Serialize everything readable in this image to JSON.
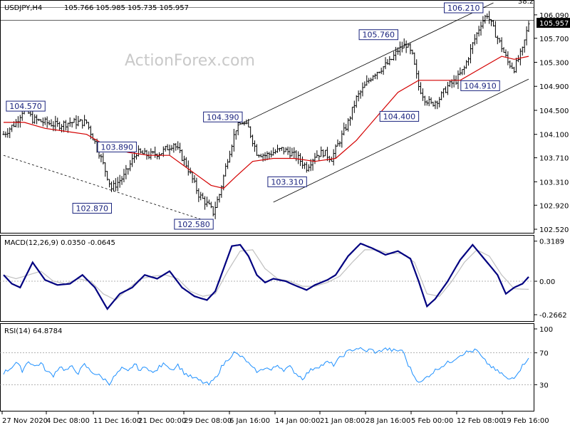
{
  "chart_data": [
    {
      "type": "candlestick",
      "title": "USDJPY,H4",
      "ohlc_header": "105.766 105.985 105.735 105.957",
      "watermark": "ActionForex.com",
      "ylim": [
        102.52,
        106.29
      ],
      "yticks": [
        "106.090",
        "105.700",
        "105.300",
        "104.900",
        "104.500",
        "104.100",
        "103.710",
        "103.310",
        "102.920",
        "102.520"
      ],
      "current_price": "105.957",
      "fib_label": "38.2",
      "x_labels": [
        "27 Nov 2020",
        "4 Dec 08:00",
        "11 Dec 16:00",
        "21 Dec 00:00",
        "29 Dec 08:00",
        "6 Jan 16:00",
        "14 Jan 00:00",
        "21 Jan 08:00",
        "28 Jan 16:00",
        "5 Feb 00:00",
        "12 Feb 08:00",
        "19 Feb 16:00"
      ],
      "annotations": [
        {
          "text": "104.570",
          "bar": 20,
          "price": 104.57
        },
        {
          "text": "102.870",
          "bar": 52,
          "price": 102.87
        },
        {
          "text": "103.890",
          "bar": 64,
          "price": 103.89
        },
        {
          "text": "102.580",
          "bar": 101,
          "price": 102.58
        },
        {
          "text": "104.390",
          "bar": 115,
          "price": 104.39
        },
        {
          "text": "103.310",
          "bar": 146,
          "price": 103.31
        },
        {
          "text": "105.760",
          "bar": 190,
          "price": 105.76
        },
        {
          "text": "104.400",
          "bar": 200,
          "price": 104.4
        },
        {
          "text": "106.210",
          "bar": 231,
          "price": 106.21
        },
        {
          "text": "104.910",
          "bar": 239,
          "price": 104.91
        }
      ],
      "close_anchors": [
        [
          0,
          104.1
        ],
        [
          6,
          104.3
        ],
        [
          10,
          104.55
        ],
        [
          14,
          104.35
        ],
        [
          20,
          104.3
        ],
        [
          26,
          104.25
        ],
        [
          32,
          104.3
        ],
        [
          40,
          104.3
        ],
        [
          46,
          103.8
        ],
        [
          52,
          103.2
        ],
        [
          58,
          103.4
        ],
        [
          64,
          103.8
        ],
        [
          70,
          103.75
        ],
        [
          76,
          103.8
        ],
        [
          82,
          103.95
        ],
        [
          88,
          103.6
        ],
        [
          94,
          103.1
        ],
        [
          99,
          102.9
        ],
        [
          101,
          102.8
        ],
        [
          104,
          103.1
        ],
        [
          108,
          103.7
        ],
        [
          112,
          104.2
        ],
        [
          115,
          104.3
        ],
        [
          118,
          104.2
        ],
        [
          122,
          103.8
        ],
        [
          126,
          103.75
        ],
        [
          130,
          103.8
        ],
        [
          134,
          103.85
        ],
        [
          138,
          103.8
        ],
        [
          142,
          103.7
        ],
        [
          146,
          103.55
        ],
        [
          150,
          103.75
        ],
        [
          154,
          103.8
        ],
        [
          158,
          103.7
        ],
        [
          162,
          104.0
        ],
        [
          166,
          104.3
        ],
        [
          170,
          104.7
        ],
        [
          174,
          104.9
        ],
        [
          178,
          105.1
        ],
        [
          182,
          105.2
        ],
        [
          186,
          105.3
        ],
        [
          190,
          105.5
        ],
        [
          194,
          105.6
        ],
        [
          197,
          105.4
        ],
        [
          200,
          104.9
        ],
        [
          203,
          104.7
        ],
        [
          206,
          104.6
        ],
        [
          210,
          104.7
        ],
        [
          214,
          104.9
        ],
        [
          218,
          105.0
        ],
        [
          222,
          105.2
        ],
        [
          226,
          105.6
        ],
        [
          230,
          105.95
        ],
        [
          233,
          106.1
        ],
        [
          236,
          105.85
        ],
        [
          240,
          105.55
        ],
        [
          243,
          105.3
        ],
        [
          246,
          105.2
        ],
        [
          250,
          105.5
        ],
        [
          253,
          105.957
        ]
      ],
      "moving_average": [
        [
          0,
          104.3
        ],
        [
          10,
          104.3
        ],
        [
          20,
          104.2
        ],
        [
          30,
          104.15
        ],
        [
          40,
          104.1
        ],
        [
          50,
          103.9
        ],
        [
          60,
          103.8
        ],
        [
          70,
          103.75
        ],
        [
          80,
          103.75
        ],
        [
          90,
          103.5
        ],
        [
          100,
          103.25
        ],
        [
          106,
          103.2
        ],
        [
          112,
          103.4
        ],
        [
          120,
          103.65
        ],
        [
          130,
          103.7
        ],
        [
          140,
          103.7
        ],
        [
          150,
          103.65
        ],
        [
          160,
          103.7
        ],
        [
          170,
          104.0
        ],
        [
          180,
          104.4
        ],
        [
          190,
          104.8
        ],
        [
          200,
          105.0
        ],
        [
          210,
          105.0
        ],
        [
          220,
          105.0
        ],
        [
          230,
          105.2
        ],
        [
          240,
          105.4
        ],
        [
          246,
          105.35
        ],
        [
          253,
          105.4
        ]
      ],
      "trendlines": [
        {
          "name": "support_dashed",
          "points": [
            [
              0,
              103.75
            ],
            [
              101,
              102.62
            ]
          ]
        },
        {
          "name": "channel_top",
          "points": [
            [
              113,
              104.25
            ],
            [
              236,
              106.29
            ]
          ]
        },
        {
          "name": "channel_bottom",
          "points": [
            [
              130,
              102.97
            ],
            [
              253,
              105.02
            ]
          ]
        }
      ],
      "levels": [
        106.21,
        106.0
      ]
    },
    {
      "type": "line",
      "title": "MACD(12,26,9) 0.0350 -0.0645",
      "ylim": [
        -0.3,
        0.34
      ],
      "yticks": [
        "0.3189",
        "0.00",
        "-0.2662"
      ],
      "series": [
        {
          "role": "macd",
          "color": "#000080",
          "values": [
            [
              0,
              0.05
            ],
            [
              4,
              -0.02
            ],
            [
              8,
              -0.05
            ],
            [
              14,
              0.15
            ],
            [
              20,
              0.01
            ],
            [
              26,
              -0.03
            ],
            [
              32,
              -0.02
            ],
            [
              38,
              0.05
            ],
            [
              44,
              -0.05
            ],
            [
              50,
              -0.22
            ],
            [
              56,
              -0.1
            ],
            [
              62,
              -0.05
            ],
            [
              68,
              0.05
            ],
            [
              74,
              0.02
            ],
            [
              80,
              0.08
            ],
            [
              86,
              -0.05
            ],
            [
              92,
              -0.12
            ],
            [
              98,
              -0.15
            ],
            [
              102,
              -0.08
            ],
            [
              106,
              0.1
            ],
            [
              110,
              0.28
            ],
            [
              114,
              0.29
            ],
            [
              118,
              0.2
            ],
            [
              122,
              0.05
            ],
            [
              126,
              -0.01
            ],
            [
              130,
              0.02
            ],
            [
              136,
              0.0
            ],
            [
              140,
              -0.03
            ],
            [
              146,
              -0.07
            ],
            [
              150,
              -0.03
            ],
            [
              156,
              0.01
            ],
            [
              160,
              0.05
            ],
            [
              166,
              0.2
            ],
            [
              172,
              0.3
            ],
            [
              178,
              0.26
            ],
            [
              184,
              0.21
            ],
            [
              190,
              0.24
            ],
            [
              196,
              0.18
            ],
            [
              200,
              0.0
            ],
            [
              204,
              -0.2
            ],
            [
              208,
              -0.14
            ],
            [
              214,
              0.0
            ],
            [
              220,
              0.17
            ],
            [
              226,
              0.29
            ],
            [
              232,
              0.17
            ],
            [
              238,
              0.05
            ],
            [
              242,
              -0.1
            ],
            [
              246,
              -0.05
            ],
            [
              250,
              -0.02
            ],
            [
              253,
              0.035
            ]
          ]
        },
        {
          "role": "signal",
          "color": "#c0c0c0",
          "values": [
            [
              0,
              0.05
            ],
            [
              6,
              0.02
            ],
            [
              12,
              0.05
            ],
            [
              18,
              0.08
            ],
            [
              24,
              0.0
            ],
            [
              30,
              -0.02
            ],
            [
              36,
              0.02
            ],
            [
              42,
              0.0
            ],
            [
              48,
              -0.1
            ],
            [
              54,
              -0.15
            ],
            [
              60,
              -0.06
            ],
            [
              66,
              0.02
            ],
            [
              72,
              0.04
            ],
            [
              78,
              0.05
            ],
            [
              84,
              0.02
            ],
            [
              90,
              -0.08
            ],
            [
              96,
              -0.12
            ],
            [
              102,
              -0.1
            ],
            [
              108,
              0.08
            ],
            [
              114,
              0.24
            ],
            [
              120,
              0.25
            ],
            [
              126,
              0.1
            ],
            [
              132,
              0.02
            ],
            [
              138,
              0.0
            ],
            [
              144,
              -0.04
            ],
            [
              150,
              -0.04
            ],
            [
              156,
              -0.01
            ],
            [
              162,
              0.04
            ],
            [
              168,
              0.15
            ],
            [
              174,
              0.25
            ],
            [
              180,
              0.25
            ],
            [
              186,
              0.22
            ],
            [
              192,
              0.22
            ],
            [
              198,
              0.15
            ],
            [
              204,
              -0.1
            ],
            [
              210,
              -0.12
            ],
            [
              216,
              0.0
            ],
            [
              222,
              0.15
            ],
            [
              228,
              0.25
            ],
            [
              234,
              0.2
            ],
            [
              240,
              0.05
            ],
            [
              246,
              -0.06
            ],
            [
              253,
              -0.0645
            ]
          ]
        }
      ],
      "zero_line": 0.0
    },
    {
      "type": "line",
      "title": "RSI(14) 64.8784",
      "ylim": [
        0,
        100
      ],
      "yticks": [
        "100",
        "70",
        "30"
      ],
      "levels": [
        70,
        30
      ],
      "series": [
        {
          "role": "rsi",
          "color": "#1e90ff",
          "values": [
            [
              0,
              45
            ],
            [
              3,
              50
            ],
            [
              6,
              58
            ],
            [
              9,
              48
            ],
            [
              12,
              60
            ],
            [
              15,
              53
            ],
            [
              18,
              57
            ],
            [
              21,
              46
            ],
            [
              24,
              42
            ],
            [
              27,
              53
            ],
            [
              30,
              48
            ],
            [
              33,
              52
            ],
            [
              36,
              45
            ],
            [
              39,
              55
            ],
            [
              42,
              47
            ],
            [
              45,
              43
            ],
            [
              48,
              38
            ],
            [
              51,
              32
            ],
            [
              54,
              42
            ],
            [
              57,
              50
            ],
            [
              60,
              46
            ],
            [
              63,
              56
            ],
            [
              66,
              48
            ],
            [
              69,
              53
            ],
            [
              72,
              44
            ],
            [
              75,
              52
            ],
            [
              78,
              57
            ],
            [
              81,
              49
            ],
            [
              84,
              55
            ],
            [
              87,
              45
            ],
            [
              90,
              40
            ],
            [
              93,
              37
            ],
            [
              96,
              33
            ],
            [
              99,
              30
            ],
            [
              102,
              38
            ],
            [
              105,
              52
            ],
            [
              108,
              62
            ],
            [
              111,
              70
            ],
            [
              114,
              66
            ],
            [
              117,
              60
            ],
            [
              120,
              50
            ],
            [
              123,
              46
            ],
            [
              126,
              52
            ],
            [
              129,
              48
            ],
            [
              132,
              55
            ],
            [
              135,
              49
            ],
            [
              138,
              52
            ],
            [
              141,
              44
            ],
            [
              144,
              38
            ],
            [
              147,
              46
            ],
            [
              150,
              52
            ],
            [
              153,
              54
            ],
            [
              156,
              58
            ],
            [
              159,
              55
            ],
            [
              162,
              63
            ],
            [
              165,
              70
            ],
            [
              168,
              74
            ],
            [
              171,
              76
            ],
            [
              174,
              72
            ],
            [
              177,
              74
            ],
            [
              180,
              70
            ],
            [
              183,
              75
            ],
            [
              186,
              74
            ],
            [
              189,
              72
            ],
            [
              192,
              74
            ],
            [
              195,
              55
            ],
            [
              198,
              40
            ],
            [
              201,
              32
            ],
            [
              204,
              40
            ],
            [
              207,
              46
            ],
            [
              210,
              52
            ],
            [
              213,
              56
            ],
            [
              216,
              60
            ],
            [
              219,
              66
            ],
            [
              222,
              70
            ],
            [
              225,
              72
            ],
            [
              228,
              73
            ],
            [
              231,
              62
            ],
            [
              234,
              55
            ],
            [
              237,
              48
            ],
            [
              240,
              44
            ],
            [
              243,
              36
            ],
            [
              246,
              40
            ],
            [
              249,
              50
            ],
            [
              253,
              64.88
            ]
          ]
        }
      ]
    }
  ]
}
